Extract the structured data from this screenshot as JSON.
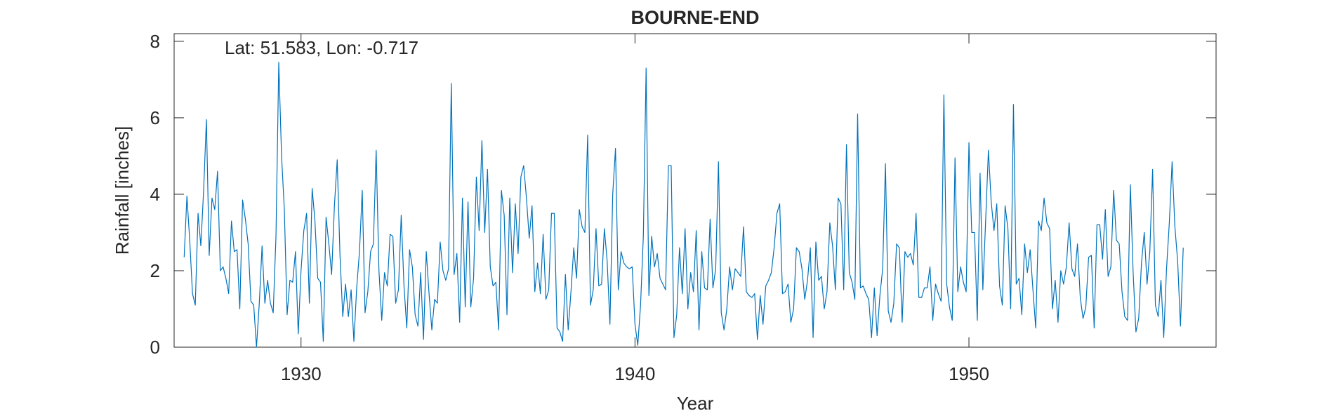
{
  "chart_data": {
    "type": "line",
    "title": "BOURNE-END",
    "annotation": "Lat: 51.583, Lon: -0.717",
    "xlabel": "Year",
    "ylabel": "Rainfall [inches]",
    "xlim": [
      1926.2,
      1957.4
    ],
    "ylim": [
      0,
      8.2
    ],
    "xticks": [
      1930,
      1940,
      1950
    ],
    "yticks": [
      0,
      2,
      4,
      6,
      8
    ],
    "grid": false,
    "line_color": "#0072bd",
    "series": [
      {
        "x_start": 1926.5,
        "x_step": 0.0833333,
        "values": [
          2.35,
          3.95,
          2.8,
          1.4,
          1.1,
          3.5,
          2.65,
          4.1,
          5.95,
          2.4,
          3.9,
          3.6,
          4.6,
          2.0,
          2.1,
          1.8,
          1.4,
          3.3,
          2.5,
          2.55,
          1.0,
          3.85,
          3.35,
          2.7,
          1.2,
          1.1,
          0.0,
          1.15,
          2.65,
          1.15,
          1.75,
          1.15,
          0.9,
          2.9,
          7.45,
          5.0,
          3.6,
          0.85,
          1.75,
          1.7,
          2.5,
          0.35,
          2.0,
          3.05,
          3.5,
          1.15,
          4.15,
          3.3,
          1.8,
          1.7,
          0.15,
          3.4,
          2.7,
          1.9,
          3.7,
          4.9,
          2.4,
          0.8,
          1.65,
          0.8,
          1.5,
          0.15,
          1.55,
          2.5,
          4.1,
          0.9,
          1.45,
          2.5,
          2.7,
          5.15,
          2.0,
          0.7,
          1.95,
          1.6,
          2.95,
          2.9,
          1.15,
          1.5,
          3.45,
          1.6,
          0.5,
          2.55,
          2.1,
          0.85,
          0.55,
          1.95,
          0.2,
          2.5,
          1.4,
          0.45,
          1.25,
          1.15,
          2.75,
          2.0,
          1.75,
          2.05,
          6.9,
          1.9,
          2.45,
          0.65,
          3.9,
          1.05,
          3.8,
          1.05,
          1.8,
          4.45,
          3.05,
          5.4,
          3.0,
          4.65,
          2.1,
          1.6,
          1.7,
          0.45,
          4.1,
          3.45,
          0.85,
          3.9,
          1.95,
          3.75,
          2.45,
          4.45,
          4.75,
          3.9,
          2.85,
          3.7,
          1.45,
          2.2,
          1.4,
          2.95,
          1.25,
          1.5,
          3.5,
          3.5,
          0.5,
          0.4,
          0.15,
          1.9,
          0.45,
          1.45,
          2.6,
          1.8,
          3.6,
          3.15,
          3.0,
          5.55,
          1.1,
          1.5,
          3.1,
          1.6,
          1.65,
          3.1,
          2.25,
          0.6,
          4.0,
          5.2,
          1.5,
          2.5,
          2.2,
          2.1,
          2.05,
          2.1,
          0.6,
          0.05,
          1.1,
          2.9,
          7.3,
          1.35,
          2.9,
          2.1,
          2.45,
          1.8,
          1.65,
          1.5,
          4.75,
          4.75,
          0.25,
          0.85,
          2.6,
          1.4,
          3.1,
          1.0,
          1.95,
          1.45,
          3.05,
          0.45,
          2.5,
          1.55,
          1.5,
          3.35,
          1.55,
          2.05,
          4.85,
          0.9,
          0.45,
          1.0,
          2.1,
          1.5,
          2.05,
          1.95,
          1.85,
          3.15,
          1.45,
          1.35,
          1.3,
          1.4,
          0.2,
          1.35,
          0.6,
          1.6,
          1.75,
          1.95,
          2.6,
          3.5,
          3.75,
          1.4,
          1.45,
          1.65,
          0.65,
          1.0,
          2.6,
          2.5,
          2.05,
          1.25,
          1.75,
          2.6,
          0.25,
          2.75,
          1.75,
          1.85,
          1.0,
          1.45,
          3.25,
          2.65,
          1.5,
          3.9,
          3.75,
          1.5,
          5.3,
          1.95,
          1.7,
          1.25,
          6.1,
          1.55,
          1.6,
          1.4,
          1.25,
          0.25,
          1.55,
          0.3,
          1.35,
          2.05,
          4.8,
          0.95,
          0.65,
          1.15,
          2.7,
          2.6,
          0.65,
          2.5,
          2.35,
          2.45,
          2.15,
          3.5,
          1.3,
          1.3,
          1.55,
          1.55,
          2.1,
          0.7,
          1.65,
          1.4,
          1.2,
          6.6,
          1.65,
          1.05,
          0.7,
          4.95,
          1.45,
          2.1,
          1.7,
          1.45,
          5.35,
          3.0,
          3.0,
          0.7,
          4.55,
          1.5,
          3.3,
          5.15,
          3.8,
          3.05,
          3.75,
          1.6,
          1.1,
          3.7,
          3.1,
          1.0,
          6.35,
          1.65,
          1.8,
          0.85,
          2.7,
          1.95,
          2.55,
          1.5,
          0.5,
          3.3,
          3.05,
          3.9,
          3.25,
          3.1,
          1.0,
          1.75,
          0.65,
          2.0,
          1.65,
          2.1,
          3.25,
          2.05,
          1.85,
          2.7,
          1.3,
          0.75,
          1.05,
          2.35,
          2.4,
          0.5,
          3.2,
          3.2,
          2.3,
          3.6,
          1.85,
          2.1,
          4.1,
          2.8,
          2.7,
          1.45,
          0.8,
          0.7,
          4.25,
          1.95,
          0.4,
          0.75,
          2.2,
          3.0,
          1.65,
          2.5,
          4.65,
          1.1,
          0.8,
          1.75,
          0.25,
          2.05,
          3.25,
          4.85,
          3.15,
          2.25,
          0.55,
          2.6
        ]
      }
    ]
  }
}
